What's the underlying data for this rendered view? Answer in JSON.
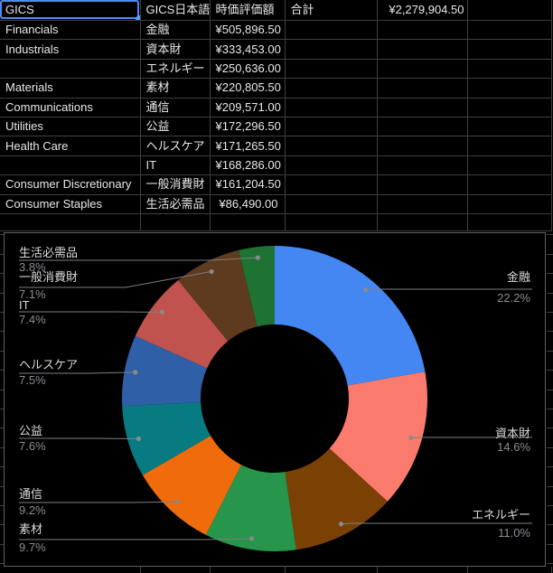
{
  "sheet": {
    "header": {
      "gics": "GICS",
      "gics_jp": "GICS日本語",
      "market_value": "時価評価額",
      "total_label": "合計",
      "total_value": "¥2,279,904.50"
    },
    "selected_cell": "GICS",
    "rows": [
      {
        "en": "Financials",
        "jp": "金融",
        "value": "¥505,896.50"
      },
      {
        "en": "Industrials",
        "jp": "資本財",
        "value": "¥333,453.00"
      },
      {
        "en": "",
        "jp": "エネルギー",
        "value": "¥250,636.00"
      },
      {
        "en": "Materials",
        "jp": "素材",
        "value": "¥220,805.50"
      },
      {
        "en": "Communications",
        "jp": "通信",
        "value": "¥209,571.00"
      },
      {
        "en": "Utilities",
        "jp": "公益",
        "value": "¥172,296.50"
      },
      {
        "en": "Health Care",
        "jp": "ヘルスケア",
        "value": "¥171,265.50"
      },
      {
        "en": "",
        "jp": "IT",
        "value": "¥168,286.00"
      },
      {
        "en": "Consumer Discretionary",
        "jp": "一般消費財",
        "value": "¥161,204.50"
      },
      {
        "en": "Consumer Staples",
        "jp": "生活必需品",
        "value": "¥86,490.00"
      }
    ]
  },
  "chart_data": {
    "type": "donut",
    "title": "",
    "unit": "percent",
    "legend_position": "callout-labels",
    "background": "#000000",
    "slices": [
      {
        "label": "金融",
        "percent": 22.2,
        "percent_label": "22.2%",
        "color": "#4587F2"
      },
      {
        "label": "資本財",
        "percent": 14.6,
        "percent_label": "14.6%",
        "color": "#FA7B6E"
      },
      {
        "label": "エネルギー",
        "percent": 11.0,
        "percent_label": "11.0%",
        "color": "#7B4104"
      },
      {
        "label": "素材",
        "percent": 9.7,
        "percent_label": "9.7%",
        "color": "#27954B"
      },
      {
        "label": "通信",
        "percent": 9.2,
        "percent_label": "9.2%",
        "color": "#F06B0B"
      },
      {
        "label": "公益",
        "percent": 7.6,
        "percent_label": "7.6%",
        "color": "#077A82"
      },
      {
        "label": "ヘルスケア",
        "percent": 7.5,
        "percent_label": "7.5%",
        "color": "#2F5FA6"
      },
      {
        "label": "IT",
        "percent": 7.4,
        "percent_label": "7.4%",
        "color": "#C1534F"
      },
      {
        "label": "一般消費財",
        "percent": 7.1,
        "percent_label": "7.1%",
        "color": "#5E3A1E"
      },
      {
        "label": "生活必需品",
        "percent": 3.8,
        "percent_label": "3.8%",
        "color": "#1E7334"
      }
    ]
  },
  "colors": {
    "selection": "#4C8BF5",
    "gridline": "#3F3F3F",
    "chart_border": "#606060",
    "callout_name": "#D9DADB",
    "callout_percent": "#8A8D91",
    "leader_line": "#7E7E7E"
  }
}
